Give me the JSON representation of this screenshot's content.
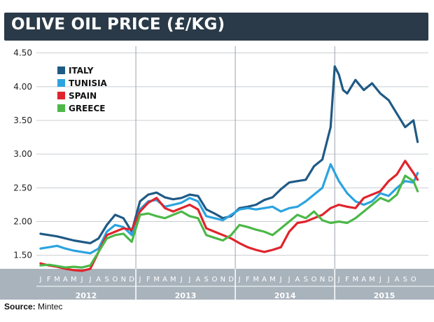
{
  "title": "OLIVE OIL PRICE (£/KG)",
  "source": {
    "label": "Source:",
    "value": "Mintec"
  },
  "chart_data": {
    "type": "line",
    "ylim": [
      1.3,
      4.6
    ],
    "yticks": [
      1.5,
      2.0,
      2.5,
      3.0,
      3.5,
      4.0,
      4.5
    ],
    "ytick_labels": [
      "1.50",
      "2.00",
      "2.50",
      "3.00",
      "3.50",
      "4.00",
      "4.50"
    ],
    "x_unit": "month index from Jan 2012",
    "xlim": [
      0,
      46
    ],
    "month_letters": [
      "J",
      "F",
      "M",
      "A",
      "M",
      "J",
      "J",
      "A",
      "S",
      "O",
      "N",
      "D"
    ],
    "years": [
      "2012",
      "2013",
      "2014",
      "2015"
    ],
    "grid": true,
    "legend_position": "top-left",
    "series": [
      {
        "name": "ITALY",
        "color": "#1f5a85",
        "x": [
          0,
          1,
          2,
          3,
          4,
          5,
          6,
          7,
          8,
          9,
          10,
          11,
          12,
          13,
          14,
          15,
          16,
          17,
          18,
          19,
          20,
          21,
          22,
          23,
          24,
          25,
          26,
          27,
          28,
          29,
          30,
          31,
          32,
          33,
          34,
          35,
          35.5,
          36,
          36.5,
          37,
          38,
          39,
          40,
          41,
          42,
          43,
          44,
          45,
          45.5
        ],
        "y": [
          1.82,
          1.8,
          1.78,
          1.75,
          1.72,
          1.7,
          1.68,
          1.75,
          1.95,
          2.1,
          2.05,
          1.85,
          2.3,
          2.4,
          2.43,
          2.36,
          2.33,
          2.35,
          2.4,
          2.38,
          2.18,
          2.12,
          2.05,
          2.08,
          2.2,
          2.22,
          2.25,
          2.32,
          2.36,
          2.48,
          2.58,
          2.6,
          2.62,
          2.82,
          2.92,
          3.4,
          4.3,
          4.18,
          3.95,
          3.9,
          4.1,
          3.95,
          4.05,
          3.9,
          3.8,
          3.6,
          3.4,
          3.5,
          3.18
        ]
      },
      {
        "name": "TUNISIA",
        "color": "#2ba3e0",
        "x": [
          0,
          1,
          2,
          3,
          4,
          5,
          6,
          7,
          8,
          9,
          10,
          11,
          12,
          13,
          14,
          15,
          16,
          17,
          18,
          19,
          20,
          21,
          22,
          23,
          24,
          25,
          26,
          27,
          28,
          29,
          30,
          31,
          32,
          33,
          34,
          35,
          36,
          37,
          38,
          39,
          40,
          41,
          42,
          43,
          44,
          45,
          45.5
        ],
        "y": [
          1.6,
          1.62,
          1.64,
          1.6,
          1.57,
          1.55,
          1.53,
          1.6,
          1.85,
          1.95,
          1.92,
          1.8,
          2.18,
          2.3,
          2.32,
          2.22,
          2.25,
          2.28,
          2.35,
          2.3,
          2.08,
          2.05,
          2.02,
          2.1,
          2.18,
          2.2,
          2.18,
          2.2,
          2.22,
          2.15,
          2.2,
          2.22,
          2.3,
          2.4,
          2.5,
          2.85,
          2.6,
          2.42,
          2.3,
          2.25,
          2.3,
          2.42,
          2.38,
          2.5,
          2.6,
          2.58,
          2.72
        ]
      },
      {
        "name": "SPAIN",
        "color": "#e0242c",
        "x": [
          0,
          1,
          2,
          3,
          4,
          5,
          6,
          7,
          8,
          9,
          10,
          11,
          12,
          13,
          14,
          15,
          16,
          17,
          18,
          19,
          20,
          21,
          22,
          23,
          24,
          25,
          26,
          27,
          28,
          29,
          30,
          31,
          32,
          33,
          34,
          35,
          36,
          37,
          38,
          39,
          40,
          41,
          42,
          43,
          44,
          45,
          45.5
        ],
        "y": [
          1.38,
          1.35,
          1.33,
          1.3,
          1.28,
          1.27,
          1.3,
          1.55,
          1.8,
          1.85,
          1.9,
          1.88,
          2.15,
          2.28,
          2.35,
          2.2,
          2.15,
          2.2,
          2.25,
          2.18,
          1.9,
          1.85,
          1.8,
          1.75,
          1.68,
          1.62,
          1.58,
          1.55,
          1.58,
          1.62,
          1.85,
          1.98,
          2.0,
          2.05,
          2.1,
          2.2,
          2.25,
          2.22,
          2.2,
          2.35,
          2.4,
          2.45,
          2.6,
          2.7,
          2.9,
          2.72,
          2.62
        ]
      },
      {
        "name": "GREECE",
        "color": "#4cb848",
        "x": [
          0,
          1,
          2,
          3,
          4,
          5,
          6,
          7,
          8,
          9,
          10,
          11,
          12,
          13,
          14,
          15,
          16,
          17,
          18,
          19,
          20,
          21,
          22,
          23,
          24,
          25,
          26,
          27,
          28,
          29,
          30,
          31,
          32,
          33,
          34,
          35,
          36,
          37,
          38,
          39,
          40,
          41,
          42,
          43,
          44,
          45,
          45.5
        ],
        "y": [
          1.35,
          1.36,
          1.34,
          1.32,
          1.33,
          1.32,
          1.35,
          1.55,
          1.75,
          1.8,
          1.82,
          1.7,
          2.1,
          2.12,
          2.08,
          2.05,
          2.1,
          2.15,
          2.08,
          2.05,
          1.8,
          1.76,
          1.72,
          1.8,
          1.95,
          1.92,
          1.88,
          1.85,
          1.8,
          1.9,
          2.0,
          2.1,
          2.05,
          2.15,
          2.02,
          1.98,
          2.0,
          1.98,
          2.05,
          2.15,
          2.25,
          2.35,
          2.3,
          2.4,
          2.68,
          2.6,
          2.45
        ]
      }
    ]
  }
}
